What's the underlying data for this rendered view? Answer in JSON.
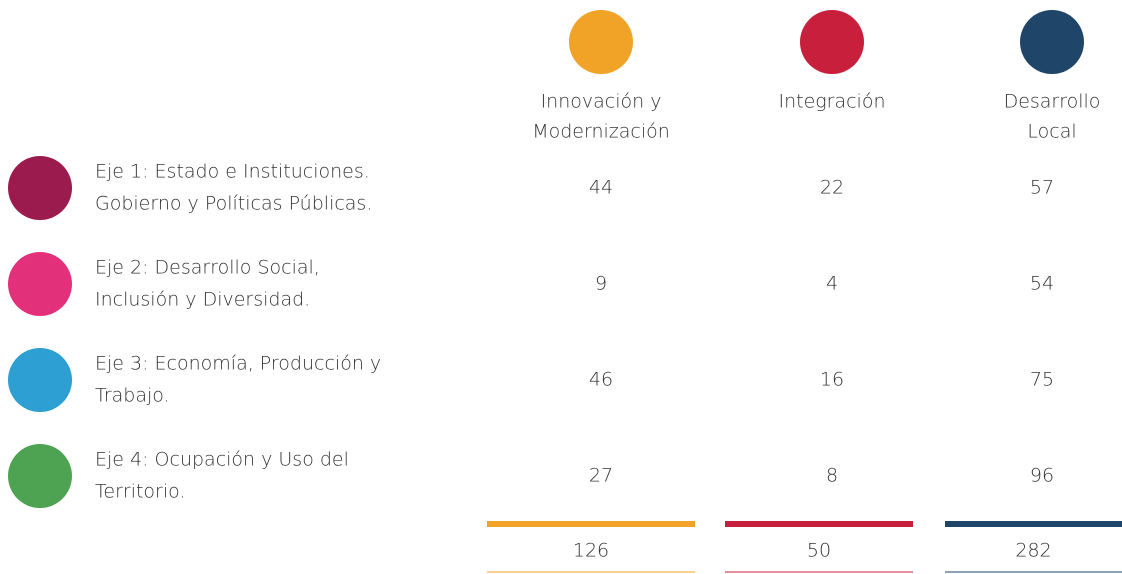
{
  "table": {
    "columns": [
      {
        "lines": [
          "Innovación y",
          "Modernización"
        ],
        "color": "#f0a326"
      },
      {
        "lines": [
          "Integración"
        ],
        "color": "#c71f3c"
      },
      {
        "lines": [
          "Desarrollo",
          "Local"
        ],
        "color": "#1f4568"
      }
    ],
    "rows": [
      {
        "lines": [
          "Eje 1: Estado e Instituciones.",
          "Gobierno y Políticas Públicas."
        ],
        "color": "#9b1b4f",
        "values": [
          44,
          22,
          57
        ]
      },
      {
        "lines": [
          "Eje 2: Desarrollo Social,",
          "Inclusión y Diversidad."
        ],
        "color": "#e2317a",
        "values": [
          9,
          4,
          54
        ]
      },
      {
        "lines": [
          "Eje 3: Economía, Producción y",
          "Trabajo."
        ],
        "color": "#2d9fd2",
        "values": [
          46,
          16,
          75
        ]
      },
      {
        "lines": [
          "Eje 4: Ocupación y Uso del",
          "Territorio."
        ],
        "color": "#4ea353",
        "values": [
          27,
          8,
          96
        ]
      }
    ],
    "totals": [
      126,
      50,
      282
    ]
  }
}
